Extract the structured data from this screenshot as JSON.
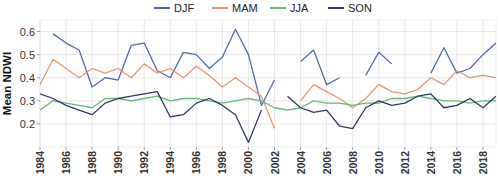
{
  "chart_data": {
    "type": "line",
    "y_label": "Mean NDWI",
    "x": [
      1984,
      1985,
      1986,
      1987,
      1988,
      1989,
      1990,
      1991,
      1992,
      1993,
      1994,
      1995,
      1996,
      1997,
      1998,
      1999,
      2000,
      2001,
      2002,
      2003,
      2004,
      2005,
      2006,
      2007,
      2008,
      2009,
      2010,
      2011,
      2012,
      2013,
      2014,
      2015,
      2016,
      2017,
      2018,
      2019
    ],
    "series": [
      {
        "name": "DJF",
        "color": "#4d6fa8",
        "values": [
          null,
          0.59,
          0.55,
          0.52,
          0.36,
          0.4,
          0.39,
          0.54,
          0.55,
          0.43,
          0.4,
          0.51,
          0.5,
          0.44,
          0.49,
          0.61,
          0.5,
          0.28,
          0.39,
          null,
          0.47,
          0.52,
          0.37,
          0.4,
          null,
          0.41,
          0.51,
          0.46,
          null,
          null,
          0.42,
          0.53,
          0.42,
          0.44,
          0.5,
          0.55
        ]
      },
      {
        "name": "MAM",
        "color": "#e9956b",
        "values": [
          0.37,
          0.48,
          0.44,
          0.4,
          0.44,
          0.42,
          0.44,
          0.4,
          0.46,
          0.42,
          0.44,
          0.4,
          0.45,
          0.41,
          0.36,
          0.4,
          0.36,
          0.32,
          0.18,
          null,
          0.3,
          0.37,
          0.34,
          0.31,
          0.27,
          0.31,
          0.37,
          0.34,
          0.33,
          0.35,
          0.4,
          0.37,
          0.43,
          0.4,
          0.41,
          0.4
        ]
      },
      {
        "name": "JJA",
        "color": "#62b97a",
        "values": [
          0.26,
          0.3,
          0.29,
          0.28,
          0.27,
          0.31,
          0.31,
          0.3,
          0.31,
          0.32,
          0.3,
          0.31,
          0.31,
          0.3,
          0.29,
          0.3,
          0.31,
          0.3,
          0.27,
          0.26,
          0.27,
          0.3,
          0.29,
          0.29,
          0.28,
          0.29,
          0.29,
          0.31,
          0.31,
          0.32,
          0.31,
          0.3,
          0.3,
          0.29,
          0.3,
          0.3
        ]
      },
      {
        "name": "SON",
        "color": "#2c3a66",
        "values": [
          0.33,
          0.31,
          0.28,
          0.26,
          0.24,
          0.29,
          0.31,
          0.32,
          0.33,
          0.34,
          0.23,
          0.24,
          0.29,
          0.31,
          0.28,
          0.24,
          0.12,
          0.26,
          null,
          0.32,
          0.27,
          0.25,
          0.26,
          0.19,
          0.18,
          0.27,
          0.3,
          0.28,
          0.29,
          0.32,
          0.33,
          0.27,
          0.28,
          0.31,
          0.27,
          0.32
        ]
      }
    ],
    "xlim": [
      1984,
      2019
    ],
    "xticks": [
      1984,
      1986,
      1988,
      1990,
      1992,
      1994,
      1996,
      1998,
      2000,
      2002,
      2004,
      2006,
      2008,
      2010,
      2012,
      2014,
      2016,
      2018
    ],
    "ylim": [
      0.1,
      0.65
    ],
    "yticks": [
      0.2,
      0.3,
      0.4,
      0.5,
      0.6
    ],
    "grid": true,
    "legend": "top"
  }
}
